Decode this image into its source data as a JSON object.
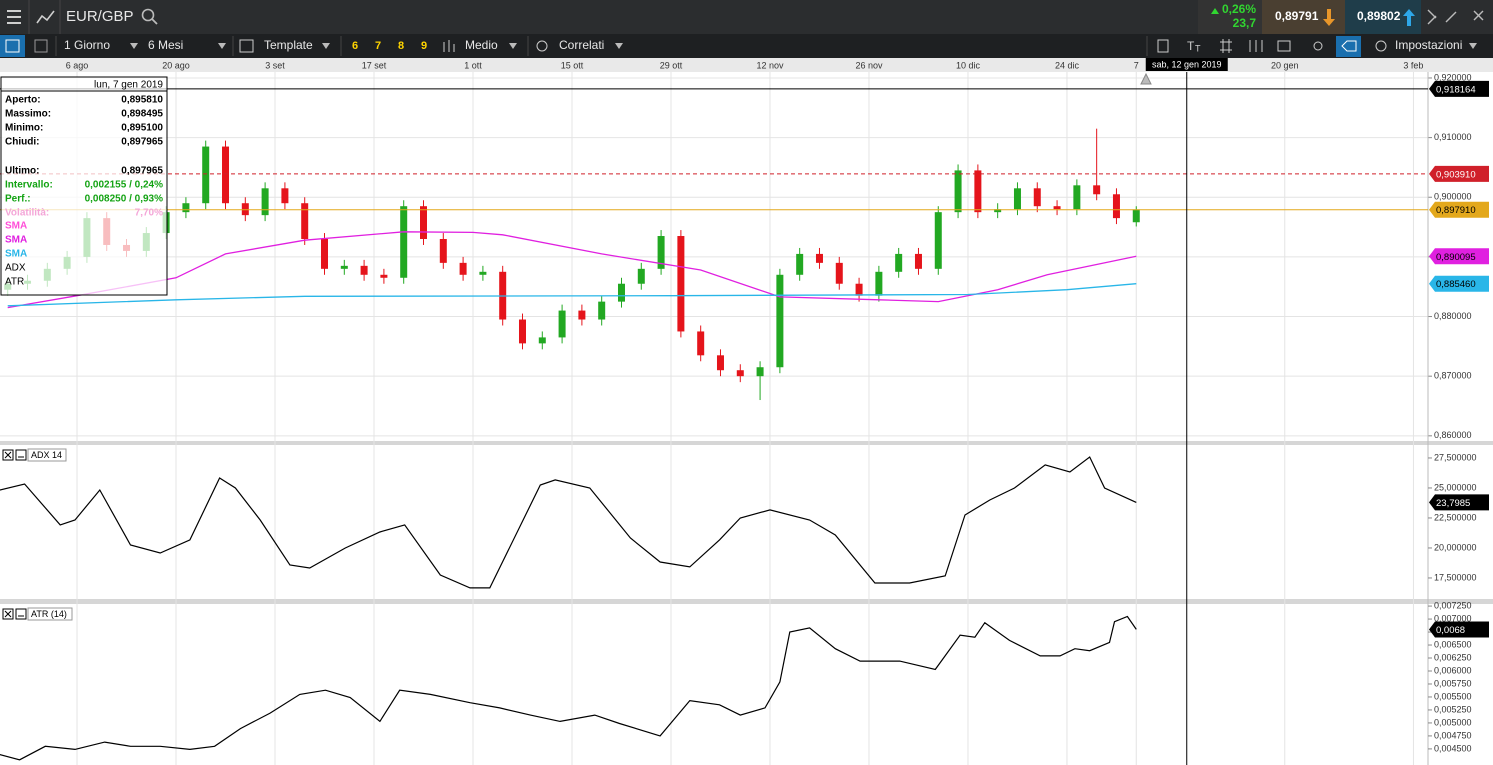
{
  "toolbar": {
    "symbol": "EUR/GBP",
    "change_pct": "0,26%",
    "change_pts": "23,7",
    "sell": "0,89791",
    "buy": "0,89802"
  },
  "menu": {
    "interval": "1 Giorno",
    "range": "6 Mesi",
    "template": "Template",
    "presets": [
      "6",
      "7",
      "8",
      "9"
    ],
    "style": "Medio",
    "related": "Correlati",
    "settings": "Impostazioni"
  },
  "info_panel": {
    "date": "lun, 7 gen 2019",
    "rows": [
      {
        "label": "Aperto:",
        "value": "0,895810",
        "color": "#000000"
      },
      {
        "label": "Massimo:",
        "value": "0,898495",
        "color": "#000000"
      },
      {
        "label": "Minimo:",
        "value": "0,895100",
        "color": "#000000"
      },
      {
        "label": "Chiudi:",
        "value": "0,897965",
        "color": "#000000"
      },
      {
        "label": "Ultimo:",
        "value": "0,897965",
        "color": "#000000"
      },
      {
        "label": "Intervallo:",
        "value": "0,002155 / 0,24%",
        "color": "#13a313"
      },
      {
        "label": "Perf.:",
        "value": "0,008250 / 0,93%",
        "color": "#13a313"
      },
      {
        "label": "Volatilità:",
        "value": "7,70%",
        "color": "#f4a6d8"
      }
    ],
    "legend": [
      {
        "label": "SMA",
        "color": "#ff4fd8"
      },
      {
        "label": "SMA",
        "color": "#e020e0"
      },
      {
        "label": "SMA",
        "color": "#29b6e8"
      },
      {
        "label": "ADX",
        "color": "#000000"
      },
      {
        "label": "ATR",
        "color": "#000000"
      }
    ]
  },
  "chart_data": {
    "type": "candlestick",
    "x": [
      -7,
      -5,
      -3,
      -1,
      1,
      3,
      5,
      7,
      9,
      11,
      13,
      15,
      17,
      19,
      21,
      23,
      25,
      27,
      29,
      31,
      33,
      35,
      37,
      39,
      41,
      43,
      45,
      47,
      49,
      51,
      53,
      55,
      57,
      59,
      61,
      63,
      65,
      67,
      69,
      71,
      73,
      75,
      77,
      79,
      81,
      83,
      85,
      87,
      89,
      91,
      93,
      95,
      97,
      99,
      101,
      103,
      105,
      107
    ],
    "open": [
      0.8845,
      0.8855,
      0.886,
      0.888,
      0.89,
      0.8965,
      0.892,
      0.891,
      0.894,
      0.8975,
      0.899,
      0.9085,
      0.899,
      0.897,
      0.9015,
      0.899,
      0.893,
      0.888,
      0.8885,
      0.887,
      0.8865,
      0.8985,
      0.893,
      0.889,
      0.887,
      0.8875,
      0.8795,
      0.8755,
      0.8765,
      0.881,
      0.8795,
      0.8825,
      0.8855,
      0.888,
      0.8935,
      0.8775,
      0.8735,
      0.871,
      0.87,
      0.8715,
      0.887,
      0.8905,
      0.889,
      0.8855,
      0.8835,
      0.8875,
      0.8905,
      0.888,
      0.8975,
      0.9045,
      0.8975,
      0.898,
      0.9015,
      0.8985,
      0.898,
      0.902,
      0.9005,
      0.89581
    ],
    "high": [
      0.8865,
      0.887,
      0.889,
      0.891,
      0.8975,
      0.8975,
      0.893,
      0.895,
      0.8985,
      0.9,
      0.9095,
      0.9095,
      0.9,
      0.9025,
      0.9025,
      0.9,
      0.894,
      0.8895,
      0.8895,
      0.888,
      0.8995,
      0.8995,
      0.894,
      0.89,
      0.8885,
      0.8885,
      0.8805,
      0.8775,
      0.882,
      0.882,
      0.8835,
      0.8865,
      0.889,
      0.8945,
      0.8945,
      0.8785,
      0.8745,
      0.872,
      0.8725,
      0.888,
      0.8915,
      0.8915,
      0.89,
      0.8865,
      0.8885,
      0.8915,
      0.8915,
      0.8985,
      0.9055,
      0.9055,
      0.899,
      0.9025,
      0.9025,
      0.8995,
      0.903,
      0.9115,
      0.9015,
      0.898495
    ],
    "low": [
      0.8835,
      0.8845,
      0.885,
      0.887,
      0.889,
      0.891,
      0.89,
      0.89,
      0.893,
      0.8965,
      0.898,
      0.898,
      0.896,
      0.896,
      0.898,
      0.892,
      0.887,
      0.887,
      0.886,
      0.8855,
      0.8855,
      0.892,
      0.888,
      0.886,
      0.886,
      0.8785,
      0.8745,
      0.8745,
      0.8755,
      0.8785,
      0.8785,
      0.8815,
      0.8845,
      0.887,
      0.8765,
      0.8725,
      0.87,
      0.869,
      0.866,
      0.8705,
      0.886,
      0.888,
      0.8845,
      0.8825,
      0.8825,
      0.8865,
      0.887,
      0.887,
      0.8965,
      0.8965,
      0.8965,
      0.897,
      0.8975,
      0.897,
      0.897,
      0.8995,
      0.8955,
      0.8951
    ],
    "close": [
      0.8855,
      0.886,
      0.888,
      0.89,
      0.8965,
      0.892,
      0.891,
      0.894,
      0.8975,
      0.899,
      0.9085,
      0.899,
      0.897,
      0.9015,
      0.899,
      0.893,
      0.888,
      0.8885,
      0.887,
      0.8865,
      0.8985,
      0.893,
      0.889,
      0.887,
      0.8875,
      0.8795,
      0.8755,
      0.8765,
      0.881,
      0.8795,
      0.8825,
      0.8855,
      0.888,
      0.8935,
      0.8775,
      0.8735,
      0.871,
      0.87,
      0.8715,
      0.887,
      0.8905,
      0.889,
      0.8855,
      0.8835,
      0.8875,
      0.8905,
      0.888,
      0.8975,
      0.9045,
      0.8975,
      0.898,
      0.9015,
      0.8985,
      0.898,
      0.902,
      0.9005,
      0.8965,
      0.897965
    ],
    "up_color": "#22a822",
    "down_color": "#e5141b",
    "xlim": [
      -7.78,
      136.47
    ],
    "xticks": [
      {
        "value": 0,
        "label": "6 ago"
      },
      {
        "value": 10,
        "label": "20 ago"
      },
      {
        "value": 20,
        "label": "3 set"
      },
      {
        "value": 30,
        "label": "17 set"
      },
      {
        "value": 40,
        "label": "1 ott"
      },
      {
        "value": 50,
        "label": "15 ott"
      },
      {
        "value": 60,
        "label": "29 ott"
      },
      {
        "value": 70,
        "label": "12 nov"
      },
      {
        "value": 80,
        "label": "26 nov"
      },
      {
        "value": 90,
        "label": "10 dic"
      },
      {
        "value": 100,
        "label": "24 dic"
      },
      {
        "value": 107,
        "label": "7"
      },
      {
        "value": 122,
        "label": "20 gen"
      },
      {
        "value": 135,
        "label": "3 feb"
      }
    ],
    "ylim": [
      0.8593,
      0.921
    ],
    "yticks": [
      {
        "value": 0.92,
        "label": "0,920000"
      },
      {
        "value": 0.91,
        "label": "0,910000"
      },
      {
        "value": 0.9,
        "label": "0,900000"
      },
      {
        "value": 0.89,
        "label": "0,890000"
      },
      {
        "value": 0.88,
        "label": "0,880000"
      },
      {
        "value": 0.87,
        "label": "0,870000"
      },
      {
        "value": 0.86,
        "label": "0,860000"
      }
    ],
    "grid": true,
    "lines": [
      {
        "name": "SMA",
        "color": "#e020e0",
        "x": [
          -7,
          0,
          10,
          15,
          23,
          33,
          40,
          43,
          53,
          63,
          71,
          81,
          87,
          93,
          98,
          107
        ],
        "values": [
          0.8815,
          0.8835,
          0.8865,
          0.8905,
          0.8928,
          0.8942,
          0.8941,
          0.8937,
          0.8905,
          0.8878,
          0.8833,
          0.8828,
          0.8825,
          0.8845,
          0.887,
          0.8901
        ],
        "last_label": "0,890095"
      },
      {
        "name": "SMA",
        "color": "#29b6e8",
        "x": [
          -7,
          10,
          23,
          60,
          90,
          100,
          107
        ],
        "values": [
          0.8818,
          0.8828,
          0.8834,
          0.8835,
          0.8837,
          0.8845,
          0.8855
        ],
        "last_label": "0,885460"
      }
    ],
    "price_lines": [
      {
        "value": 0.918164,
        "label": "0,918164",
        "color": "#000000",
        "dash": false
      },
      {
        "value": 0.90391,
        "label": "0,903910",
        "color": "#d0202a",
        "dash": true
      },
      {
        "value": 0.89791,
        "label": "0,897910",
        "color": "#e3a81c",
        "dash": false
      }
    ],
    "cursor": {
      "x": 112.1,
      "label": "sab, 12 gen 2019"
    },
    "indicators": [
      {
        "name": "ADX 14",
        "color": "#000000",
        "x": [
          -7.8,
          -5.3,
          -1.7,
          -0.2,
          2.3,
          5.4,
          8.4,
          11.4,
          14.4,
          16,
          18.5,
          21.5,
          23.5,
          27.1,
          30.6,
          33.1,
          36.7,
          39.7,
          41.7,
          46.8,
          48.3,
          51.8,
          55.9,
          58.9,
          61.9,
          64.9,
          67,
          70,
          74,
          76.6,
          80.6,
          84.1,
          87.7,
          89.7,
          92.2,
          94.7,
          97.8,
          100.3,
          102.3,
          103.8,
          107
        ],
        "values": [
          24.83,
          25.33,
          21.92,
          22.33,
          24.83,
          20.25,
          19.58,
          20.67,
          25.83,
          25,
          22.33,
          18.58,
          18.33,
          20,
          21.33,
          21.92,
          17.75,
          16.67,
          16.67,
          25.25,
          25.67,
          25,
          20.83,
          18.83,
          18.42,
          20.67,
          22.5,
          23.17,
          22.33,
          21.08,
          17.08,
          17.08,
          17.67,
          22.75,
          24,
          25,
          26.92,
          26.33,
          27.58,
          25,
          23.7985
        ],
        "last_label": "23,7985",
        "ylim": [
          15.83,
          28.58
        ],
        "yticks": [
          {
            "value": 27.5,
            "label": "27,500000"
          },
          {
            "value": 25,
            "label": "25,000000"
          },
          {
            "value": 22.5,
            "label": "22,500000"
          },
          {
            "value": 20,
            "label": "20,000000"
          },
          {
            "value": 17.5,
            "label": "17,500000"
          }
        ]
      },
      {
        "name": "ATR (14)",
        "color": "#000000",
        "x": [
          -7.8,
          -5.8,
          -3.2,
          -0.2,
          2.8,
          5.4,
          8.4,
          11.4,
          13.9,
          16.5,
          19.5,
          22.5,
          25.1,
          27.6,
          30.6,
          32.6,
          35.7,
          39.7,
          42.7,
          45.8,
          48.8,
          52.3,
          54.8,
          58.9,
          61.9,
          64.9,
          67,
          69.5,
          71,
          72,
          74,
          76.6,
          79.1,
          83.1,
          86.7,
          89.2,
          90.7,
          91.7,
          94.2,
          97.3,
          99.3,
          100.8,
          102.3,
          104.3,
          104.8,
          106.1,
          107
        ],
        "values": [
          0.00439,
          0.00429,
          0.00455,
          0.00449,
          0.00463,
          0.00455,
          0.00455,
          0.00449,
          0.00455,
          0.00489,
          0.00519,
          0.00555,
          0.00563,
          0.00549,
          0.00503,
          0.00563,
          0.00555,
          0.00539,
          0.00529,
          0.00515,
          0.00503,
          0.00515,
          0.00499,
          0.00475,
          0.00543,
          0.00535,
          0.00515,
          0.00529,
          0.00579,
          0.00675,
          0.00683,
          0.00643,
          0.00619,
          0.00619,
          0.00603,
          0.00669,
          0.00665,
          0.00693,
          0.00659,
          0.00629,
          0.00629,
          0.00643,
          0.00639,
          0.00655,
          0.00695,
          0.00705,
          0.0068
        ],
        "last_label": "0,0068",
        "ylim": [
          0.00419,
          0.00729
        ],
        "yticks": [
          {
            "value": 0.00725,
            "label": "0,007250"
          },
          {
            "value": 0.007,
            "label": "0,007000"
          },
          {
            "value": 0.00675,
            "label": "0,006750"
          },
          {
            "value": 0.0065,
            "label": "0,006500"
          },
          {
            "value": 0.00625,
            "label": "0,006250"
          },
          {
            "value": 0.006,
            "label": "0,006000"
          },
          {
            "value": 0.00575,
            "label": "0,005750"
          },
          {
            "value": 0.0055,
            "label": "0,005500"
          },
          {
            "value": 0.00525,
            "label": "0,005250"
          },
          {
            "value": 0.005,
            "label": "0,005000"
          },
          {
            "value": 0.00475,
            "label": "0,004750"
          },
          {
            "value": 0.0045,
            "label": "0,004500"
          }
        ]
      }
    ]
  }
}
